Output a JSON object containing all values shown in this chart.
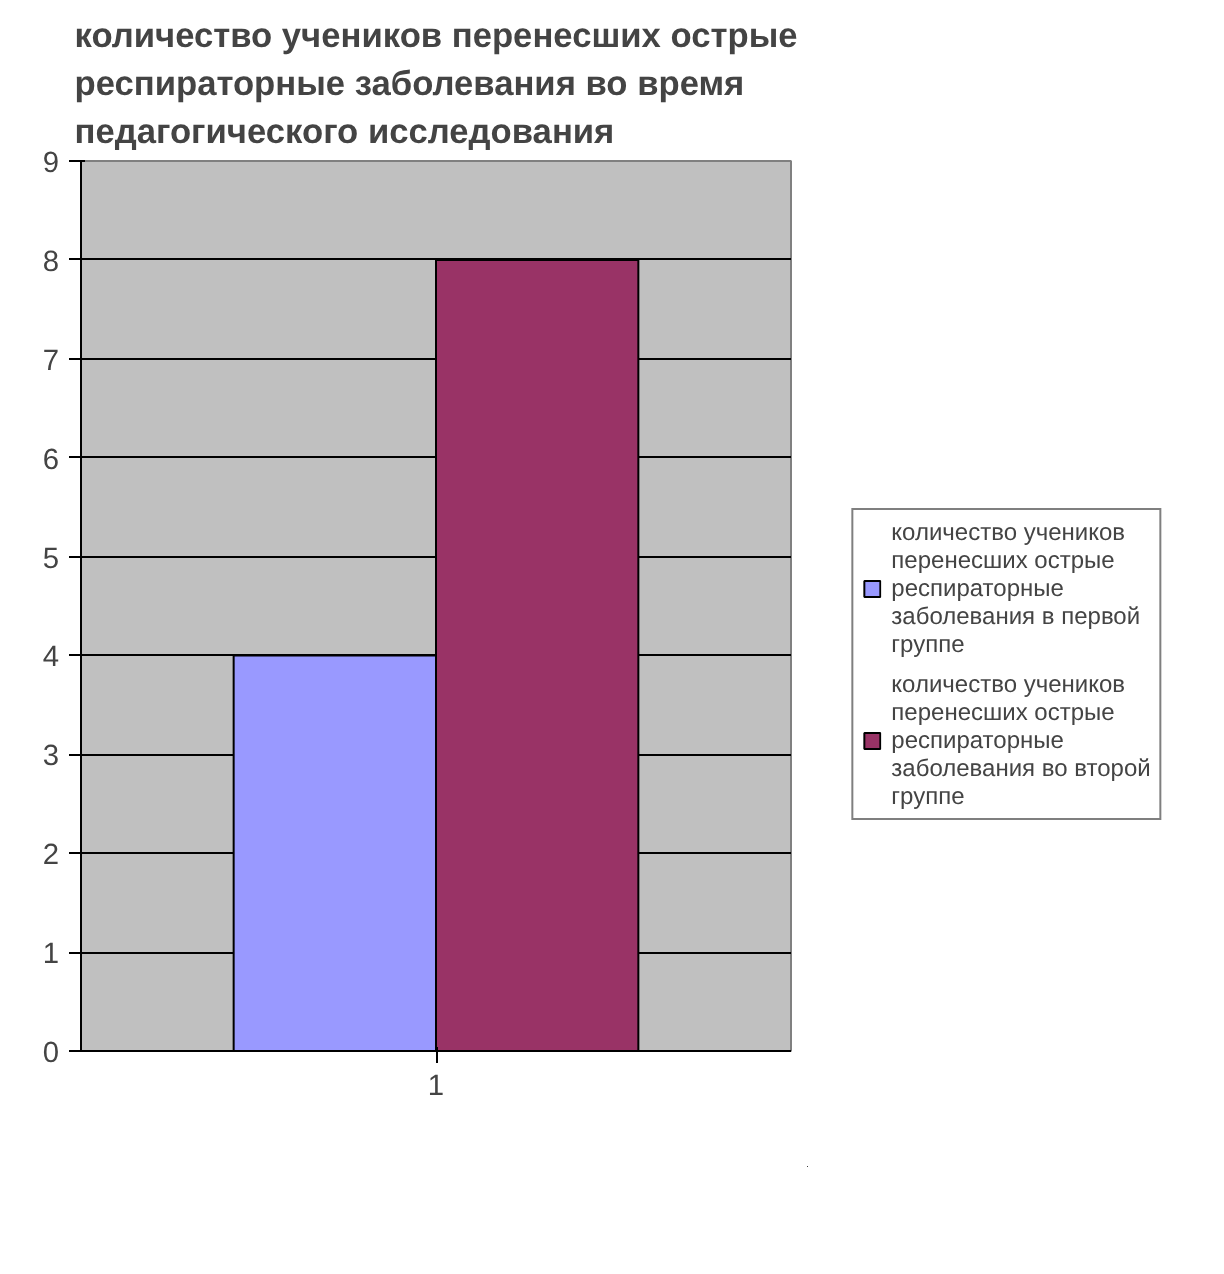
{
  "chart_data": {
    "type": "bar",
    "title": "количество учеников перенесших острые респираторные заболевания во время педагогического исследования",
    "categories": [
      "1"
    ],
    "series": [
      {
        "name": "количество учеников перенесших острые респираторные заболевания в первой группе",
        "color": "#9999ff",
        "values": [
          4
        ]
      },
      {
        "name": "количество учеников перенесших острые респираторные заболевания во второй группе",
        "color": "#993366",
        "values": [
          8
        ]
      }
    ],
    "ylim": [
      0,
      9
    ],
    "yticks": [
      0,
      1,
      2,
      3,
      4,
      5,
      6,
      7,
      8,
      9
    ],
    "grid": "y",
    "legend": "right"
  }
}
